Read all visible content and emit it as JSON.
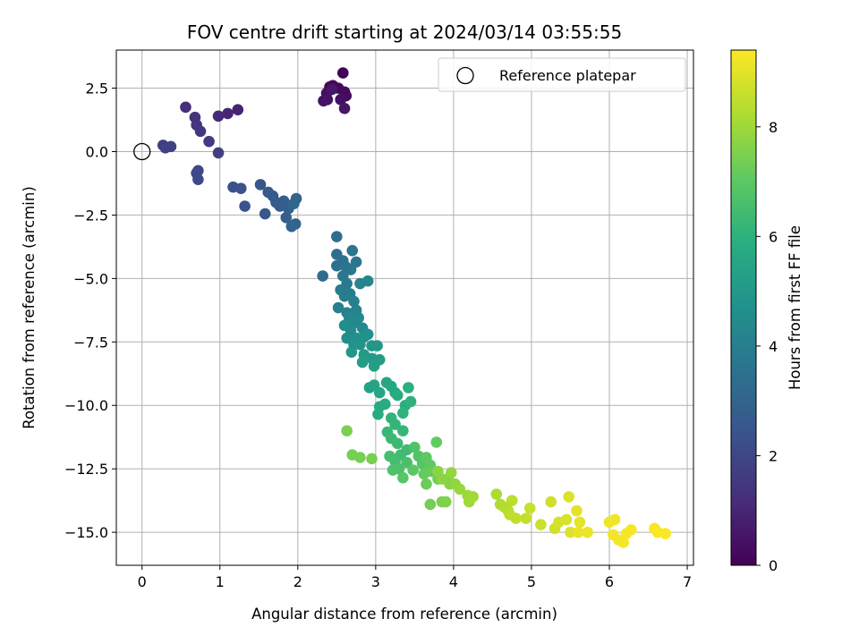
{
  "chart_data": {
    "type": "scatter",
    "title": "FOV centre drift starting at 2024/03/14 03:55:55",
    "xlabel": "Angular distance from reference (arcmin)",
    "ylabel": "Rotation from reference (arcmin)",
    "xlim": [
      -0.33,
      7.08
    ],
    "ylim": [
      -16.3,
      4.0
    ],
    "xticks": [
      0,
      1,
      2,
      3,
      4,
      5,
      6,
      7
    ],
    "yticks": [
      2.5,
      0.0,
      -2.5,
      -5.0,
      -7.5,
      -10.0,
      -12.5,
      -15.0
    ],
    "ytick_labels": [
      "2.5",
      "0.0",
      "−2.5",
      "−5.0",
      "−7.5",
      "−10.0",
      "−12.5",
      "−15.0"
    ],
    "grid": true,
    "legend": {
      "label": "Reference platepar",
      "location": "upper right",
      "marker": "open-circle"
    },
    "reference_point": {
      "x": 0.0,
      "y": 0.0
    },
    "colorbar": {
      "label": "Hours from first FF file",
      "colormap": "viridis",
      "min": 0,
      "max": 9.4,
      "ticks": [
        0,
        2,
        4,
        6,
        8
      ]
    },
    "points": [
      {
        "x": 2.58,
        "y": 3.1,
        "t": 0.05
      },
      {
        "x": 2.41,
        "y": 2.55,
        "t": 0.1
      },
      {
        "x": 2.45,
        "y": 2.6,
        "t": 0.15
      },
      {
        "x": 2.52,
        "y": 2.5,
        "t": 0.2
      },
      {
        "x": 2.6,
        "y": 2.35,
        "t": 0.25
      },
      {
        "x": 2.62,
        "y": 2.2,
        "t": 0.3
      },
      {
        "x": 2.37,
        "y": 2.3,
        "t": 0.35
      },
      {
        "x": 2.55,
        "y": 2.05,
        "t": 0.4
      },
      {
        "x": 2.33,
        "y": 2.0,
        "t": 0.45
      },
      {
        "x": 2.38,
        "y": 2.05,
        "t": 0.5
      },
      {
        "x": 2.6,
        "y": 1.7,
        "t": 0.55
      },
      {
        "x": 2.44,
        "y": 2.45,
        "t": 0.6
      },
      {
        "x": 1.23,
        "y": 1.65,
        "t": 0.9
      },
      {
        "x": 1.1,
        "y": 1.5,
        "t": 1.0
      },
      {
        "x": 0.98,
        "y": 1.4,
        "t": 1.1
      },
      {
        "x": 0.56,
        "y": 1.75,
        "t": 1.2
      },
      {
        "x": 0.68,
        "y": 1.35,
        "t": 1.3
      },
      {
        "x": 0.7,
        "y": 1.05,
        "t": 1.4
      },
      {
        "x": 0.75,
        "y": 0.8,
        "t": 1.5
      },
      {
        "x": 0.86,
        "y": 0.4,
        "t": 1.6
      },
      {
        "x": 0.98,
        "y": -0.05,
        "t": 1.7
      },
      {
        "x": 0.27,
        "y": 0.25,
        "t": 1.75
      },
      {
        "x": 0.37,
        "y": 0.2,
        "t": 1.8
      },
      {
        "x": 0.3,
        "y": 0.15,
        "t": 1.85
      },
      {
        "x": 0.72,
        "y": -0.75,
        "t": 2.0
      },
      {
        "x": 0.7,
        "y": -0.85,
        "t": 2.05
      },
      {
        "x": 0.72,
        "y": -1.1,
        "t": 2.1
      },
      {
        "x": 1.17,
        "y": -1.4,
        "t": 2.3
      },
      {
        "x": 1.27,
        "y": -1.45,
        "t": 2.35
      },
      {
        "x": 1.32,
        "y": -2.15,
        "t": 2.4
      },
      {
        "x": 1.52,
        "y": -1.3,
        "t": 2.5
      },
      {
        "x": 1.58,
        "y": -2.45,
        "t": 2.55
      },
      {
        "x": 1.62,
        "y": -1.6,
        "t": 2.6
      },
      {
        "x": 1.68,
        "y": -1.75,
        "t": 2.65
      },
      {
        "x": 1.72,
        "y": -2.0,
        "t": 2.7
      },
      {
        "x": 1.77,
        "y": -2.15,
        "t": 2.75
      },
      {
        "x": 1.82,
        "y": -1.95,
        "t": 2.8
      },
      {
        "x": 1.85,
        "y": -2.6,
        "t": 2.85
      },
      {
        "x": 1.88,
        "y": -2.25,
        "t": 2.9
      },
      {
        "x": 1.92,
        "y": -2.95,
        "t": 2.95
      },
      {
        "x": 1.98,
        "y": -1.85,
        "t": 3.0
      },
      {
        "x": 1.97,
        "y": -2.85,
        "t": 3.05
      },
      {
        "x": 1.95,
        "y": -2.05,
        "t": 3.1
      },
      {
        "x": 2.32,
        "y": -4.9,
        "t": 3.3
      },
      {
        "x": 2.5,
        "y": -3.35,
        "t": 3.35
      },
      {
        "x": 2.5,
        "y": -4.05,
        "t": 3.4
      },
      {
        "x": 2.5,
        "y": -4.5,
        "t": 3.45
      },
      {
        "x": 2.58,
        "y": -4.3,
        "t": 3.5
      },
      {
        "x": 2.62,
        "y": -4.55,
        "t": 3.55
      },
      {
        "x": 2.7,
        "y": -3.9,
        "t": 3.6
      },
      {
        "x": 2.75,
        "y": -4.35,
        "t": 3.65
      },
      {
        "x": 2.68,
        "y": -4.65,
        "t": 3.7
      },
      {
        "x": 2.58,
        "y": -4.9,
        "t": 3.75
      },
      {
        "x": 2.63,
        "y": -5.2,
        "t": 3.8
      },
      {
        "x": 2.55,
        "y": -5.45,
        "t": 3.85
      },
      {
        "x": 2.6,
        "y": -5.7,
        "t": 3.9
      },
      {
        "x": 2.67,
        "y": -5.6,
        "t": 3.95
      },
      {
        "x": 2.72,
        "y": -5.9,
        "t": 4.0
      },
      {
        "x": 2.52,
        "y": -6.15,
        "t": 4.05
      },
      {
        "x": 2.63,
        "y": -6.35,
        "t": 4.1
      },
      {
        "x": 2.75,
        "y": -6.25,
        "t": 4.15
      },
      {
        "x": 2.8,
        "y": -5.2,
        "t": 4.2
      },
      {
        "x": 2.9,
        "y": -5.1,
        "t": 4.25
      },
      {
        "x": 2.66,
        "y": -6.55,
        "t": 4.3
      },
      {
        "x": 2.72,
        "y": -6.75,
        "t": 4.35
      },
      {
        "x": 2.78,
        "y": -6.55,
        "t": 4.4
      },
      {
        "x": 2.83,
        "y": -6.95,
        "t": 4.45
      },
      {
        "x": 2.6,
        "y": -6.85,
        "t": 4.5
      },
      {
        "x": 2.68,
        "y": -7.05,
        "t": 4.55
      },
      {
        "x": 2.63,
        "y": -7.35,
        "t": 4.6
      },
      {
        "x": 2.76,
        "y": -7.35,
        "t": 4.65
      },
      {
        "x": 2.85,
        "y": -7.3,
        "t": 4.7
      },
      {
        "x": 2.9,
        "y": -7.2,
        "t": 4.75
      },
      {
        "x": 2.72,
        "y": -7.6,
        "t": 4.8
      },
      {
        "x": 2.8,
        "y": -7.6,
        "t": 4.85
      },
      {
        "x": 2.69,
        "y": -7.9,
        "t": 4.9
      },
      {
        "x": 2.95,
        "y": -7.65,
        "t": 4.95
      },
      {
        "x": 3.02,
        "y": -7.65,
        "t": 5.0
      },
      {
        "x": 2.85,
        "y": -8.0,
        "t": 5.05
      },
      {
        "x": 2.95,
        "y": -8.15,
        "t": 5.1
      },
      {
        "x": 3.05,
        "y": -8.2,
        "t": 5.15
      },
      {
        "x": 2.83,
        "y": -8.3,
        "t": 5.2
      },
      {
        "x": 2.98,
        "y": -8.45,
        "t": 5.25
      },
      {
        "x": 2.92,
        "y": -9.3,
        "t": 5.4
      },
      {
        "x": 2.98,
        "y": -9.2,
        "t": 5.45
      },
      {
        "x": 3.05,
        "y": -9.5,
        "t": 5.5
      },
      {
        "x": 3.14,
        "y": -9.1,
        "t": 5.55
      },
      {
        "x": 3.2,
        "y": -9.25,
        "t": 5.6
      },
      {
        "x": 3.25,
        "y": -9.5,
        "t": 5.65
      },
      {
        "x": 3.05,
        "y": -10.05,
        "t": 5.7
      },
      {
        "x": 3.12,
        "y": -9.95,
        "t": 5.75
      },
      {
        "x": 3.03,
        "y": -10.35,
        "t": 5.8
      },
      {
        "x": 3.28,
        "y": -9.6,
        "t": 5.85
      },
      {
        "x": 3.38,
        "y": -10.0,
        "t": 5.9
      },
      {
        "x": 3.42,
        "y": -9.3,
        "t": 5.95
      },
      {
        "x": 3.45,
        "y": -9.85,
        "t": 6.0
      },
      {
        "x": 3.35,
        "y": -10.3,
        "t": 6.05
      },
      {
        "x": 3.2,
        "y": -10.5,
        "t": 6.1
      },
      {
        "x": 3.25,
        "y": -10.75,
        "t": 6.15
      },
      {
        "x": 3.35,
        "y": -11.0,
        "t": 6.2
      },
      {
        "x": 3.15,
        "y": -11.05,
        "t": 6.25
      },
      {
        "x": 3.2,
        "y": -11.3,
        "t": 6.3
      },
      {
        "x": 3.28,
        "y": -11.5,
        "t": 6.35
      },
      {
        "x": 3.4,
        "y": -11.75,
        "t": 6.4
      },
      {
        "x": 3.32,
        "y": -11.95,
        "t": 6.45
      },
      {
        "x": 3.25,
        "y": -12.2,
        "t": 6.5
      },
      {
        "x": 3.18,
        "y": -12.0,
        "t": 6.55
      },
      {
        "x": 3.4,
        "y": -12.25,
        "t": 6.6
      },
      {
        "x": 3.3,
        "y": -12.5,
        "t": 6.65
      },
      {
        "x": 3.22,
        "y": -12.55,
        "t": 6.7
      },
      {
        "x": 3.5,
        "y": -11.65,
        "t": 6.75
      },
      {
        "x": 3.55,
        "y": -12.0,
        "t": 6.8
      },
      {
        "x": 3.6,
        "y": -12.3,
        "t": 6.85
      },
      {
        "x": 3.35,
        "y": -12.85,
        "t": 6.9
      },
      {
        "x": 3.48,
        "y": -12.55,
        "t": 6.95
      },
      {
        "x": 3.65,
        "y": -12.05,
        "t": 7.0
      },
      {
        "x": 3.7,
        "y": -12.35,
        "t": 7.05
      },
      {
        "x": 3.78,
        "y": -11.45,
        "t": 7.1
      },
      {
        "x": 3.62,
        "y": -12.7,
        "t": 7.15
      },
      {
        "x": 3.72,
        "y": -12.6,
        "t": 7.2
      },
      {
        "x": 3.65,
        "y": -13.1,
        "t": 7.25
      },
      {
        "x": 3.8,
        "y": -12.9,
        "t": 7.3
      },
      {
        "x": 3.7,
        "y": -13.9,
        "t": 7.35
      },
      {
        "x": 2.7,
        "y": -11.95,
        "t": 7.4
      },
      {
        "x": 2.8,
        "y": -12.05,
        "t": 7.42
      },
      {
        "x": 2.95,
        "y": -12.1,
        "t": 7.44
      },
      {
        "x": 2.63,
        "y": -11.0,
        "t": 7.46
      },
      {
        "x": 3.85,
        "y": -13.8,
        "t": 7.5
      },
      {
        "x": 3.9,
        "y": -13.8,
        "t": 7.55
      },
      {
        "x": 3.92,
        "y": -12.9,
        "t": 7.6
      },
      {
        "x": 3.95,
        "y": -13.1,
        "t": 7.65
      },
      {
        "x": 3.8,
        "y": -12.6,
        "t": 7.7
      },
      {
        "x": 3.85,
        "y": -12.9,
        "t": 7.75
      },
      {
        "x": 4.02,
        "y": -13.1,
        "t": 7.8
      },
      {
        "x": 3.97,
        "y": -12.65,
        "t": 7.85
      },
      {
        "x": 4.08,
        "y": -13.3,
        "t": 7.9
      },
      {
        "x": 4.18,
        "y": -13.55,
        "t": 7.95
      },
      {
        "x": 4.2,
        "y": -13.8,
        "t": 8.0
      },
      {
        "x": 4.25,
        "y": -13.6,
        "t": 8.05
      },
      {
        "x": 4.55,
        "y": -13.5,
        "t": 8.2
      },
      {
        "x": 4.6,
        "y": -13.9,
        "t": 8.25
      },
      {
        "x": 4.65,
        "y": -14.0,
        "t": 8.3
      },
      {
        "x": 4.7,
        "y": -14.15,
        "t": 8.35
      },
      {
        "x": 4.75,
        "y": -13.75,
        "t": 8.4
      },
      {
        "x": 4.72,
        "y": -14.3,
        "t": 8.45
      },
      {
        "x": 4.8,
        "y": -14.45,
        "t": 8.5
      },
      {
        "x": 4.93,
        "y": -14.45,
        "t": 8.55
      },
      {
        "x": 4.98,
        "y": -14.05,
        "t": 8.6
      },
      {
        "x": 5.12,
        "y": -14.7,
        "t": 8.65
      },
      {
        "x": 5.25,
        "y": -13.8,
        "t": 8.7
      },
      {
        "x": 5.3,
        "y": -14.85,
        "t": 8.75
      },
      {
        "x": 5.35,
        "y": -14.6,
        "t": 8.8
      },
      {
        "x": 5.45,
        "y": -14.5,
        "t": 8.85
      },
      {
        "x": 5.48,
        "y": -13.6,
        "t": 8.9
      },
      {
        "x": 5.5,
        "y": -15.0,
        "t": 8.95
      },
      {
        "x": 5.58,
        "y": -14.15,
        "t": 9.0
      },
      {
        "x": 5.62,
        "y": -14.6,
        "t": 9.05
      },
      {
        "x": 5.6,
        "y": -15.0,
        "t": 9.1
      },
      {
        "x": 5.72,
        "y": -15.0,
        "t": 9.15
      },
      {
        "x": 6.0,
        "y": -14.6,
        "t": 9.2
      },
      {
        "x": 6.07,
        "y": -14.5,
        "t": 9.22
      },
      {
        "x": 6.05,
        "y": -15.1,
        "t": 9.24
      },
      {
        "x": 6.12,
        "y": -15.3,
        "t": 9.26
      },
      {
        "x": 6.18,
        "y": -15.4,
        "t": 9.28
      },
      {
        "x": 6.22,
        "y": -15.05,
        "t": 9.3
      },
      {
        "x": 6.28,
        "y": -14.9,
        "t": 9.32
      },
      {
        "x": 6.58,
        "y": -14.85,
        "t": 9.34
      },
      {
        "x": 6.62,
        "y": -15.0,
        "t": 9.36
      },
      {
        "x": 6.72,
        "y": -15.05,
        "t": 9.38
      }
    ]
  }
}
